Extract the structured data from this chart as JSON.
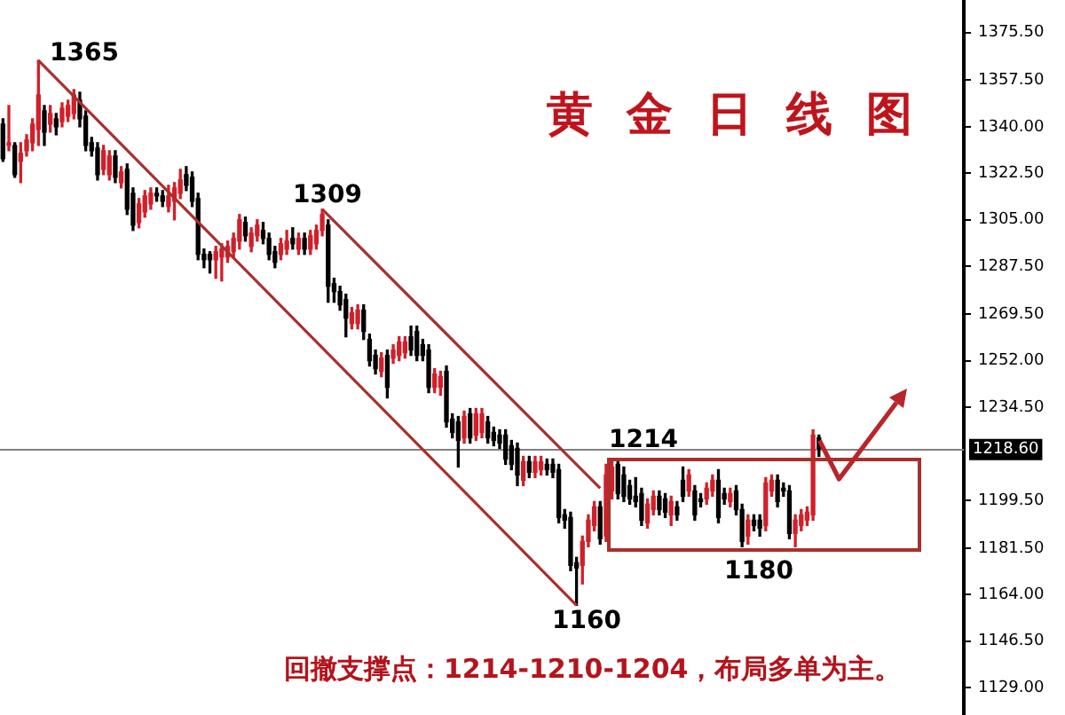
{
  "chart_data": {
    "type": "candlestick",
    "title": "黄金日线图",
    "annotations": [
      "1365",
      "1309",
      "1214",
      "1160",
      "1180",
      "回撤支撑点：1214-1210-1204，布局多单为主。"
    ],
    "categories": [
      null,
      null,
      null,
      null,
      null,
      null,
      null,
      null,
      null,
      null,
      null,
      null,
      null,
      null,
      null,
      null,
      null,
      null,
      null,
      null,
      null,
      null,
      null,
      null,
      null,
      null,
      null,
      null,
      null,
      null,
      null,
      null,
      null,
      null,
      null,
      null,
      null,
      null,
      null,
      null,
      null,
      null,
      null,
      null,
      null,
      null,
      null,
      null,
      null,
      null,
      null,
      null,
      null,
      null,
      null,
      null,
      null,
      null,
      null,
      null,
      null,
      null,
      null,
      null,
      null,
      null,
      null,
      null,
      null,
      null,
      null,
      null,
      null,
      null,
      null,
      null,
      null,
      null,
      null,
      null,
      null,
      null,
      null,
      null,
      null,
      null,
      null,
      null,
      null,
      null,
      null,
      null,
      null,
      null,
      null,
      null,
      null,
      null,
      null,
      null,
      null,
      null,
      null,
      null,
      null,
      null,
      null,
      null,
      null,
      null,
      null,
      null,
      null,
      null,
      null,
      null,
      null,
      null,
      null,
      null,
      null,
      null,
      null,
      null,
      null,
      null,
      null,
      null,
      null,
      null,
      null,
      null,
      null,
      null,
      null,
      null,
      null,
      null,
      null,
      null,
      null,
      null,
      null,
      null,
      null,
      null,
      null,
      null,
      null,
      null,
      null,
      null,
      null,
      null,
      null,
      null,
      null,
      null,
      null,
      null,
      null,
      null,
      null
    ],
    "ohlc": [
      [
        1341,
        1343,
        1327,
        1328
      ],
      [
        1333,
        1348,
        1331,
        1334
      ],
      [
        1333,
        1334,
        1321,
        1322
      ],
      [
        1327,
        1334,
        1319,
        1330
      ],
      [
        1331,
        1337,
        1329,
        1335
      ],
      [
        1334,
        1343,
        1331,
        1341
      ],
      [
        1339,
        1365,
        1333,
        1352
      ],
      [
        1346,
        1348,
        1333,
        1338
      ],
      [
        1341,
        1348,
        1338,
        1345
      ],
      [
        1343,
        1345,
        1337,
        1340
      ],
      [
        1342,
        1349,
        1340,
        1347
      ],
      [
        1344,
        1350,
        1342,
        1348
      ],
      [
        1345,
        1354,
        1343,
        1352
      ],
      [
        1350,
        1353,
        1340,
        1343
      ],
      [
        1344,
        1346,
        1331,
        1333
      ],
      [
        1334,
        1336,
        1329,
        1331
      ],
      [
        1332,
        1334,
        1320,
        1322
      ],
      [
        1324,
        1333,
        1322,
        1331
      ],
      [
        1322,
        1331,
        1320,
        1329
      ],
      [
        1329,
        1331,
        1319,
        1321
      ],
      [
        1319,
        1325,
        1317,
        1323
      ],
      [
        1324,
        1326,
        1307,
        1309
      ],
      [
        1315,
        1317,
        1301,
        1303
      ],
      [
        1304,
        1313,
        1302,
        1311
      ],
      [
        1308,
        1316,
        1306,
        1314
      ],
      [
        1311,
        1317,
        1309,
        1315
      ],
      [
        1315,
        1317,
        1312,
        1314
      ],
      [
        1314,
        1316,
        1310,
        1312
      ],
      [
        1310,
        1318,
        1308,
        1314
      ],
      [
        1312,
        1319,
        1305,
        1317
      ],
      [
        1315,
        1324,
        1313,
        1320
      ],
      [
        1322,
        1325,
        1316,
        1318
      ],
      [
        1321,
        1323,
        1310,
        1312
      ],
      [
        1313,
        1315,
        1290,
        1292
      ],
      [
        1292,
        1294,
        1287,
        1290
      ],
      [
        1292,
        1293,
        1285,
        1290
      ],
      [
        1290,
        1295,
        1283,
        1293
      ],
      [
        1291,
        1296,
        1282,
        1294
      ],
      [
        1291,
        1297,
        1289,
        1295
      ],
      [
        1293,
        1300,
        1291,
        1298
      ],
      [
        1297,
        1307,
        1294,
        1305
      ],
      [
        1304,
        1306,
        1297,
        1299
      ],
      [
        1295,
        1302,
        1293,
        1300
      ],
      [
        1299,
        1305,
        1297,
        1303
      ],
      [
        1301,
        1304,
        1296,
        1298
      ],
      [
        1298,
        1300,
        1290,
        1292
      ],
      [
        1293,
        1295,
        1287,
        1289
      ],
      [
        1292,
        1298,
        1290,
        1296
      ],
      [
        1294,
        1301,
        1292,
        1297
      ],
      [
        1298,
        1302,
        1294,
        1296
      ],
      [
        1294,
        1300,
        1292,
        1298
      ],
      [
        1298,
        1300,
        1292,
        1294
      ],
      [
        1294,
        1301,
        1292,
        1299
      ],
      [
        1296,
        1303,
        1294,
        1301
      ],
      [
        1301,
        1309,
        1299,
        1307
      ],
      [
        1303,
        1305,
        1274,
        1280
      ],
      [
        1281,
        1283,
        1274,
        1278
      ],
      [
        1278,
        1280,
        1271,
        1273
      ],
      [
        1275,
        1277,
        1261,
        1268
      ],
      [
        1266,
        1272,
        1264,
        1270
      ],
      [
        1266,
        1273,
        1264,
        1271
      ],
      [
        1271,
        1273,
        1260,
        1263
      ],
      [
        1260,
        1262,
        1250,
        1252
      ],
      [
        1254,
        1256,
        1247,
        1249
      ],
      [
        1248,
        1255,
        1246,
        1253
      ],
      [
        1254,
        1256,
        1238,
        1242
      ],
      [
        1253,
        1258,
        1251,
        1256
      ],
      [
        1254,
        1261,
        1252,
        1259
      ],
      [
        1255,
        1261,
        1253,
        1259
      ],
      [
        1261,
        1265,
        1254,
        1256
      ],
      [
        1263,
        1265,
        1252,
        1254
      ],
      [
        1258,
        1260,
        1252,
        1254
      ],
      [
        1256,
        1258,
        1240,
        1242
      ],
      [
        1242,
        1249,
        1240,
        1247
      ],
      [
        1242,
        1248,
        1239,
        1246
      ],
      [
        1248,
        1250,
        1227,
        1229
      ],
      [
        1230,
        1232,
        1223,
        1225
      ],
      [
        1229,
        1231,
        1212,
        1222
      ],
      [
        1223,
        1233,
        1221,
        1231
      ],
      [
        1232,
        1234,
        1221,
        1223
      ],
      [
        1224,
        1234,
        1222,
        1232
      ],
      [
        1225,
        1234,
        1223,
        1232
      ],
      [
        1229,
        1231,
        1221,
        1223
      ],
      [
        1225,
        1227,
        1220,
        1222
      ],
      [
        1224,
        1226,
        1219,
        1221
      ],
      [
        1224,
        1226,
        1213,
        1215
      ],
      [
        1220,
        1222,
        1211,
        1213
      ],
      [
        1219,
        1221,
        1205,
        1209
      ],
      [
        1207,
        1216,
        1205,
        1214
      ],
      [
        1214,
        1216,
        1208,
        1210
      ],
      [
        1210,
        1216,
        1208,
        1214
      ],
      [
        1211,
        1216,
        1209,
        1214
      ],
      [
        1213,
        1215,
        1209,
        1211
      ],
      [
        1213,
        1215,
        1208,
        1210
      ],
      [
        1211,
        1213,
        1191,
        1193
      ],
      [
        1194,
        1196,
        1189,
        1192
      ],
      [
        1193,
        1195,
        1173,
        1175
      ],
      [
        1176,
        1178,
        1160,
        1174
      ],
      [
        1175,
        1186,
        1168,
        1184
      ],
      [
        1184,
        1194,
        1182,
        1192
      ],
      [
        1190,
        1199,
        1188,
        1197
      ],
      [
        1197,
        1199,
        1183,
        1185
      ],
      [
        1186,
        1213,
        1184,
        1209
      ],
      [
        1203,
        1214,
        1200,
        1212
      ],
      [
        1213,
        1215,
        1200,
        1202
      ],
      [
        1209,
        1212,
        1199,
        1201
      ],
      [
        1205,
        1207,
        1198,
        1200
      ],
      [
        1201,
        1208,
        1197,
        1199
      ],
      [
        1202,
        1204,
        1190,
        1192
      ],
      [
        1191,
        1200,
        1189,
        1198
      ],
      [
        1196,
        1203,
        1194,
        1201
      ],
      [
        1201,
        1203,
        1194,
        1196
      ],
      [
        1200,
        1202,
        1193,
        1195
      ],
      [
        1194,
        1201,
        1190,
        1199
      ],
      [
        1197,
        1199,
        1192,
        1194
      ],
      [
        1207,
        1212,
        1199,
        1201
      ],
      [
        1203,
        1211,
        1201,
        1209
      ],
      [
        1203,
        1205,
        1192,
        1194
      ],
      [
        1200,
        1202,
        1197,
        1199
      ],
      [
        1200,
        1206,
        1198,
        1204
      ],
      [
        1203,
        1209,
        1201,
        1207
      ],
      [
        1207,
        1211,
        1191,
        1193
      ],
      [
        1202,
        1204,
        1198,
        1200
      ],
      [
        1199,
        1204,
        1197,
        1202
      ],
      [
        1203,
        1205,
        1194,
        1196
      ],
      [
        1196,
        1198,
        1182,
        1184
      ],
      [
        1186,
        1194,
        1183,
        1192
      ],
      [
        1192,
        1194,
        1188,
        1190
      ],
      [
        1192,
        1194,
        1186,
        1189
      ],
      [
        1190,
        1208,
        1188,
        1206
      ],
      [
        1203,
        1209,
        1201,
        1207
      ],
      [
        1207,
        1209,
        1197,
        1199
      ],
      [
        1204,
        1206,
        1201,
        1203
      ],
      [
        1203,
        1205,
        1185,
        1187
      ],
      [
        1187,
        1194,
        1182,
        1192
      ],
      [
        1190,
        1196,
        1188,
        1194
      ],
      [
        1192,
        1197,
        1190,
        1195
      ],
      [
        1194,
        1226,
        1192,
        1224
      ],
      [
        1223,
        1224,
        1216,
        1219
      ],
      null,
      null,
      null,
      null,
      null,
      null,
      null,
      null,
      null,
      null,
      null,
      null,
      null,
      null,
      null,
      null,
      null,
      null,
      null,
      null,
      null,
      null,
      null,
      null
    ],
    "colors": [
      "#000000",
      "#d0202a",
      "#000000",
      "#d0202a",
      "#d0202a",
      "#d0202a",
      "#d0202a",
      "#000000",
      "#d0202a",
      "#000000",
      "#d0202a",
      "#d0202a",
      "#d0202a",
      "#000000",
      "#000000",
      "#000000",
      "#000000",
      "#d0202a",
      "#d0202a",
      "#000000",
      "#d0202a",
      "#000000",
      "#000000",
      "#d0202a",
      "#d0202a",
      "#d0202a",
      "#000000",
      "#000000",
      "#d0202a",
      "#d0202a",
      "#d0202a",
      "#000000",
      "#000000",
      "#000000",
      "#000000",
      "#000000",
      "#d0202a",
      "#d0202a",
      "#d0202a",
      "#d0202a",
      "#d0202a",
      "#000000",
      "#d0202a",
      "#d0202a",
      "#000000",
      "#000000",
      "#000000",
      "#d0202a",
      "#d0202a",
      "#000000",
      "#d0202a",
      "#000000",
      "#d0202a",
      "#d0202a",
      "#d0202a",
      "#000000",
      "#000000",
      "#000000",
      "#000000",
      "#d0202a",
      "#d0202a",
      "#000000",
      "#000000",
      "#000000",
      "#d0202a",
      "#000000",
      "#d0202a",
      "#d0202a",
      "#d0202a",
      "#000000",
      "#000000",
      "#000000",
      "#000000",
      "#d0202a",
      "#d0202a",
      "#000000",
      "#000000",
      "#000000",
      "#d0202a",
      "#000000",
      "#d0202a",
      "#d0202a",
      "#000000",
      "#000000",
      "#000000",
      "#000000",
      "#000000",
      "#000000",
      "#d0202a",
      "#000000",
      "#d0202a",
      "#d0202a",
      "#000000",
      "#000000",
      "#000000",
      "#000000",
      "#000000",
      "#000000",
      "#d0202a",
      "#d0202a",
      "#d0202a",
      "#000000",
      "#d0202a",
      "#d0202a",
      "#000000",
      "#000000",
      "#000000",
      "#000000",
      "#000000",
      "#d0202a",
      "#d0202a",
      "#000000",
      "#000000",
      "#d0202a",
      "#000000",
      "#000000",
      "#d0202a",
      "#000000",
      "#000000",
      "#d0202a",
      "#d0202a",
      "#000000",
      "#000000",
      "#d0202a",
      "#000000",
      "#000000",
      "#d0202a",
      "#000000",
      "#000000",
      "#d0202a",
      "#d0202a",
      "#000000",
      "#000000",
      "#000000",
      "#d0202a",
      "#d0202a",
      "#d0202a",
      "#d0202a",
      "#000000",
      null,
      null,
      null,
      null,
      null,
      null,
      null,
      null,
      null,
      null,
      null,
      null,
      null,
      null,
      null,
      null,
      null,
      null,
      null,
      null,
      null,
      null,
      null,
      null
    ],
    "series": [
      {
        "type": "line",
        "color": "#a8302c",
        "values": [
          null,
          null,
          null,
          null,
          null,
          null,
          1365,
          null,
          null,
          null,
          null,
          null,
          null,
          null,
          null,
          null,
          null,
          null,
          null,
          null,
          null,
          null,
          null,
          null,
          null,
          null,
          null,
          null,
          null,
          null,
          null,
          null,
          null,
          null,
          null,
          null,
          null,
          null,
          null,
          null,
          null,
          null,
          null,
          null,
          null,
          null,
          null,
          null,
          null,
          null,
          null,
          null,
          null,
          null,
          null,
          null,
          null,
          null,
          null,
          null,
          null,
          null,
          null,
          null,
          null,
          null,
          null,
          null,
          null,
          null,
          null,
          null,
          null,
          null,
          null,
          null,
          null,
          null,
          null,
          null,
          null,
          null,
          null,
          null,
          null,
          null,
          null,
          null,
          null,
          null,
          null,
          null,
          null,
          null,
          null,
          null,
          null,
          1160,
          null,
          null,
          null,
          null,
          null,
          null,
          null,
          null,
          null,
          null,
          null,
          null,
          null,
          null,
          null,
          null,
          null,
          null,
          null,
          null,
          null,
          null,
          null,
          null,
          null,
          null,
          null,
          null,
          null,
          null,
          null,
          null,
          null,
          null,
          null,
          null,
          null,
          null,
          null,
          null,
          null,
          null,
          null,
          null,
          null,
          null,
          null,
          null,
          null,
          null,
          null,
          null,
          null,
          null,
          null,
          null,
          null,
          null,
          null,
          null,
          null,
          null,
          null,
          null,
          null
        ]
      },
      {
        "type": "line",
        "color": "#a8302c",
        "values": [
          null,
          null,
          null,
          null,
          null,
          null,
          null,
          null,
          null,
          null,
          null,
          null,
          null,
          null,
          null,
          null,
          null,
          null,
          null,
          null,
          null,
          null,
          null,
          null,
          null,
          null,
          null,
          null,
          null,
          null,
          null,
          null,
          null,
          null,
          null,
          null,
          null,
          null,
          null,
          null,
          null,
          null,
          null,
          null,
          null,
          null,
          null,
          null,
          null,
          null,
          null,
          null,
          null,
          null,
          1309,
          null,
          null,
          null,
          null,
          null,
          null,
          null,
          null,
          null,
          null,
          null,
          null,
          null,
          null,
          null,
          null,
          null,
          null,
          null,
          null,
          null,
          null,
          null,
          null,
          null,
          null,
          null,
          null,
          null,
          null,
          null,
          null,
          null,
          null,
          null,
          null,
          null,
          null,
          null,
          null,
          null,
          null,
          null,
          null,
          null,
          null,
          1204,
          null,
          null,
          null,
          null,
          null,
          null,
          null,
          null,
          null,
          null,
          null,
          null,
          null,
          null,
          null,
          null,
          null,
          null,
          null,
          null,
          null,
          null,
          null,
          null,
          null,
          null,
          null,
          null,
          null,
          null,
          null,
          null,
          null,
          null,
          null,
          null,
          null,
          null,
          null,
          null,
          null,
          null,
          null,
          null,
          null,
          null,
          null,
          null,
          null,
          null,
          null,
          null,
          null,
          null,
          null,
          null,
          null,
          null,
          null,
          null,
          null
        ]
      }
    ],
    "ylim": [
      1118.7,
      1387.7
    ],
    "yticks": [
      {
        "value": 1375.5,
        "label": "1375.50"
      },
      {
        "value": 1357.5,
        "label": "1357.50"
      },
      {
        "value": 1340,
        "label": "1340.00"
      },
      {
        "value": 1322.5,
        "label": "1322.50"
      },
      {
        "value": 1305,
        "label": "1305.00"
      },
      {
        "value": 1287.5,
        "label": "1287.50"
      },
      {
        "value": 1269.5,
        "label": "1269.50"
      },
      {
        "value": 1252,
        "label": "1252.00"
      },
      {
        "value": 1234.5,
        "label": "1234.50"
      },
      {
        "value": 1199.5,
        "label": "1199.50"
      },
      {
        "value": 1181.5,
        "label": "1181.50"
      },
      {
        "value": 1164,
        "label": "1164.00"
      },
      {
        "value": 1146.5,
        "label": "1146.50"
      },
      {
        "value": 1129,
        "label": "1129.00"
      }
    ],
    "ref_lines": [
      {
        "axis": "y",
        "value": 1218.6,
        "label": "1218.60",
        "color": "#808080"
      }
    ],
    "tick_labels": "y"
  }
}
